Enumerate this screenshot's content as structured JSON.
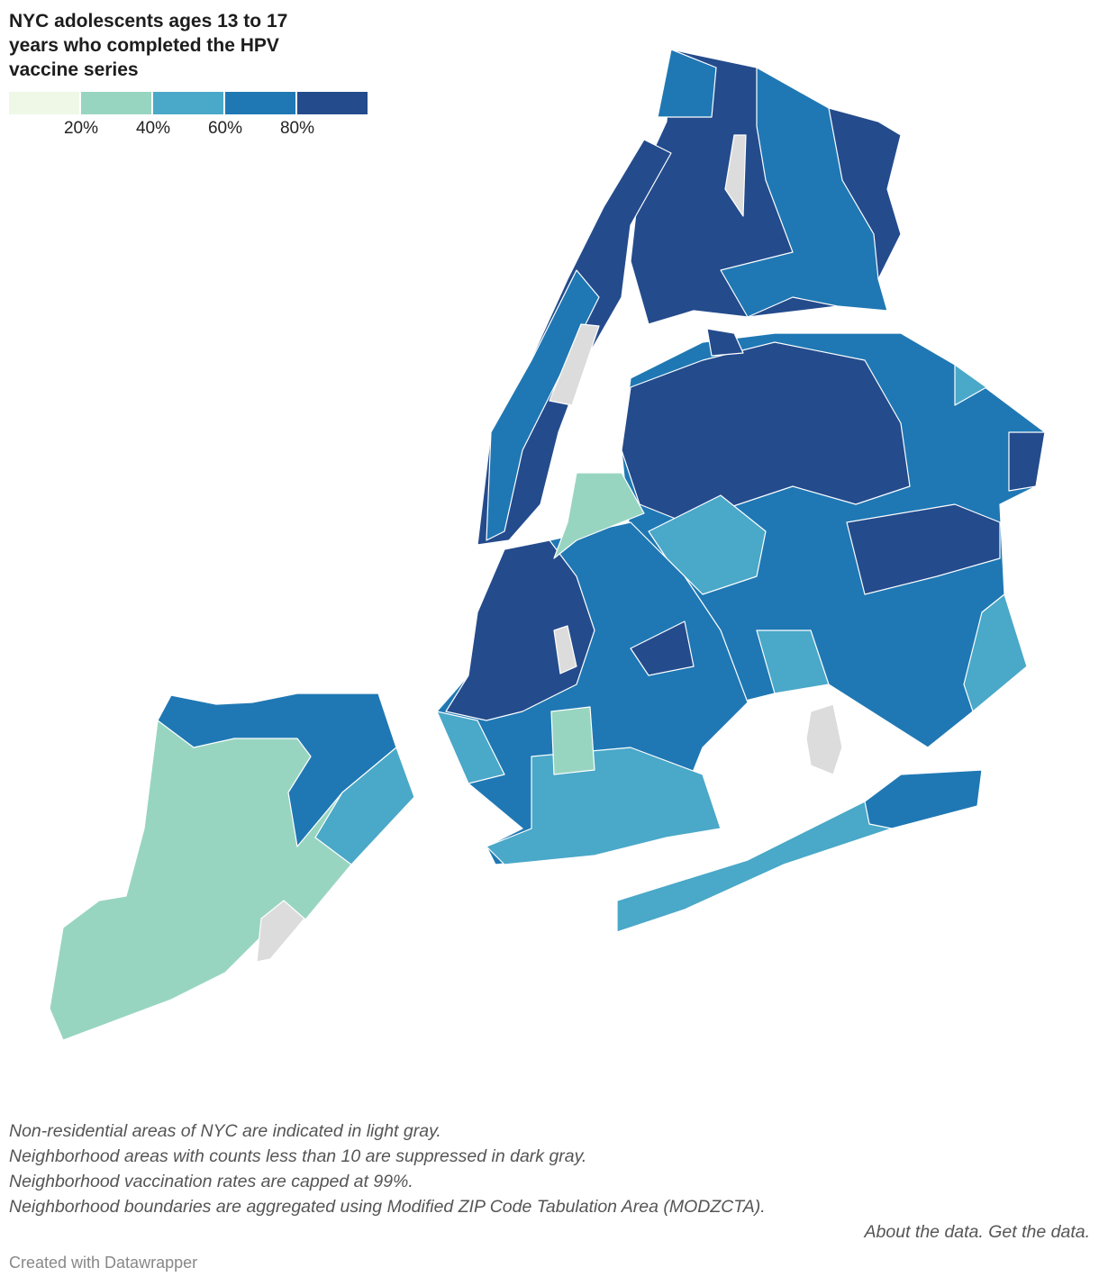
{
  "title": "NYC adolescents ages 13 to 17 years who completed the HPV vaccine series",
  "legend": {
    "colors": [
      "#eff8e7",
      "#98d5c0",
      "#4aa8c8",
      "#1f78b4",
      "#244b8c"
    ],
    "ticks": [
      "20%",
      "40%",
      "60%",
      "80%"
    ]
  },
  "colors": {
    "nonresidential": "#dcdcdc",
    "suppressed": "#888888"
  },
  "notes": [
    "Non-residential areas of NYC are indicated in light gray.",
    "Neighborhood areas with counts less than 10 are suppressed in dark gray.",
    "Neighborhood vaccination rates are capped at 99%.",
    "Neighborhood boundaries are aggregated using Modified ZIP Code Tabulation Area (MODZCTA)."
  ],
  "links": {
    "about": "About the data.",
    "get": "Get the data."
  },
  "credit": "Created with Datawrapper"
}
